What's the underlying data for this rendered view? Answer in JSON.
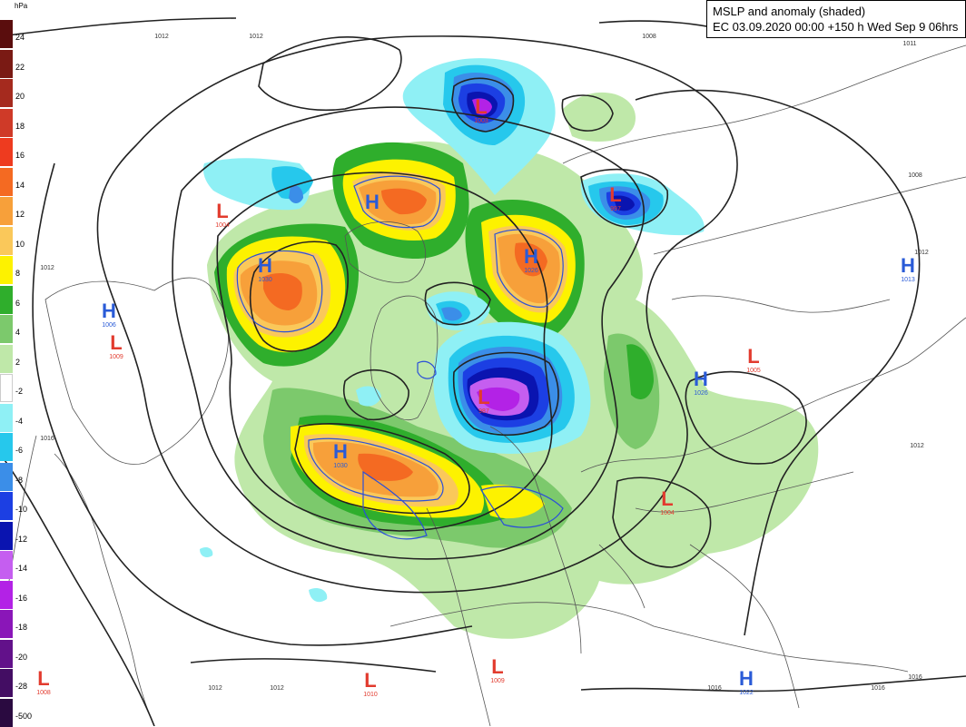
{
  "title": {
    "line1": "MSLP and anomaly (shaded)",
    "line2": "EC 03.09.2020 00:00  +150 h Wed Sep 9 06hrs"
  },
  "legend": {
    "unit": "hPa",
    "entries": [
      {
        "label": "24",
        "color": "#5a0d0d"
      },
      {
        "label": "22",
        "color": "#7a1a14"
      },
      {
        "label": "20",
        "color": "#a52a1e"
      },
      {
        "label": "18",
        "color": "#cf3a28"
      },
      {
        "label": "16",
        "color": "#ee3b1f"
      },
      {
        "label": "14",
        "color": "#f46a22"
      },
      {
        "label": "12",
        "color": "#f7a03a"
      },
      {
        "label": "10",
        "color": "#fac85a"
      },
      {
        "label": "8",
        "color": "#fdf200"
      },
      {
        "label": "6",
        "color": "#2fae2c"
      },
      {
        "label": "4",
        "color": "#7cc96c"
      },
      {
        "label": "2",
        "color": "#bfe8a9"
      },
      {
        "label": "-2",
        "color": "#ffffff"
      },
      {
        "label": "-4",
        "color": "#8ff0f5"
      },
      {
        "label": "-6",
        "color": "#26c8ec"
      },
      {
        "label": "-8",
        "color": "#3b8ee8"
      },
      {
        "label": "-10",
        "color": "#1c3fe3"
      },
      {
        "label": "-12",
        "color": "#0a14b0"
      },
      {
        "label": "-14",
        "color": "#c55ef0"
      },
      {
        "label": "-16",
        "color": "#b322e6"
      },
      {
        "label": "-18",
        "color": "#8a16b8"
      },
      {
        "label": "-20",
        "color": "#62118a"
      },
      {
        "label": "-28",
        "color": "#430d63"
      },
      {
        "label": "-500",
        "color": "#2a0a40"
      }
    ]
  },
  "centers": [
    {
      "type": "L",
      "value": "1004"
    },
    {
      "type": "H",
      "value": ""
    },
    {
      "type": "H",
      "value": "1030"
    },
    {
      "type": "H",
      "value": "1006"
    },
    {
      "type": "L",
      "value": "1009"
    },
    {
      "type": "L",
      "value": "1003"
    },
    {
      "type": "L",
      "value": "997"
    },
    {
      "type": "H",
      "value": "1026"
    },
    {
      "type": "L",
      "value": "987"
    },
    {
      "type": "H",
      "value": "1030"
    },
    {
      "type": "H",
      "value": "1026"
    },
    {
      "type": "L",
      "value": "1005"
    },
    {
      "type": "H",
      "value": "1013"
    },
    {
      "type": "L",
      "value": "1004"
    },
    {
      "type": "L",
      "value": "1008"
    },
    {
      "type": "L",
      "value": "1010"
    },
    {
      "type": "L",
      "value": "1009"
    },
    {
      "type": "H",
      "value": "1022"
    }
  ],
  "contour_labels": [
    "1012",
    "1012",
    "1008",
    "1011",
    "1012",
    "1012",
    "1016",
    "1012",
    "1012",
    "1016",
    "1016",
    "1008",
    "1016",
    "1012"
  ],
  "colors": {
    "high_label": "#2a5bd7",
    "low_label": "#e23b2e",
    "isobar": "#222222",
    "anomaly_contour": "#2b4fd8",
    "coast": "#555555"
  }
}
